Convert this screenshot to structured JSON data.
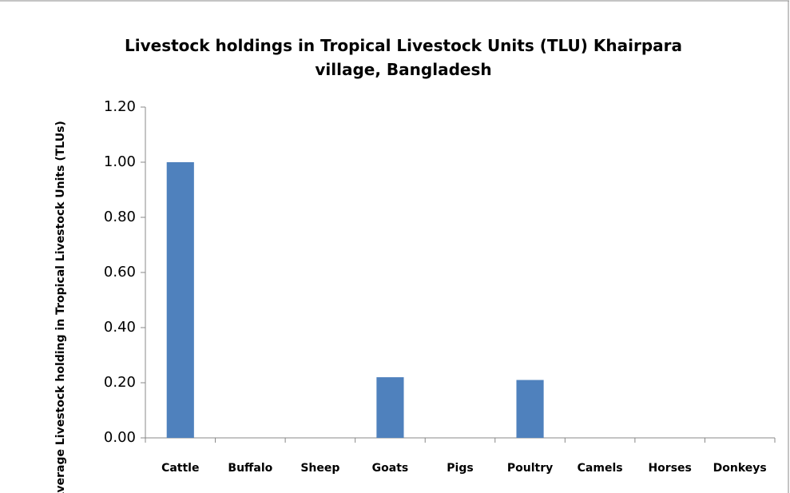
{
  "chart_data": {
    "type": "bar",
    "title": "Livestock holdings in Tropical Livestock Units (TLU) Khairpara village, Bangladesh",
    "y_label": "Average Livestock holding in Tropical Livestock Units (TLUs)",
    "categories": [
      "Cattle",
      "Buffalo",
      "Sheep",
      "Goats",
      "Pigs",
      "Poultry",
      "Camels",
      "Horses",
      "Donkeys"
    ],
    "values": [
      1.0,
      0,
      0,
      0.22,
      0,
      0.21,
      0,
      0,
      0
    ],
    "color": "#4f81bd",
    "ylim": [
      0,
      1.2
    ],
    "yticks": [
      {
        "value": 0,
        "label": "0.00"
      },
      {
        "value": 0.2,
        "label": "0.20"
      },
      {
        "value": 0.4,
        "label": "0.40"
      },
      {
        "value": 0.6,
        "label": "0.60"
      },
      {
        "value": 0.8,
        "label": "0.80"
      },
      {
        "value": 1.0,
        "label": "1.00"
      },
      {
        "value": 1.2,
        "label": "1.20"
      }
    ],
    "grid": false
  }
}
